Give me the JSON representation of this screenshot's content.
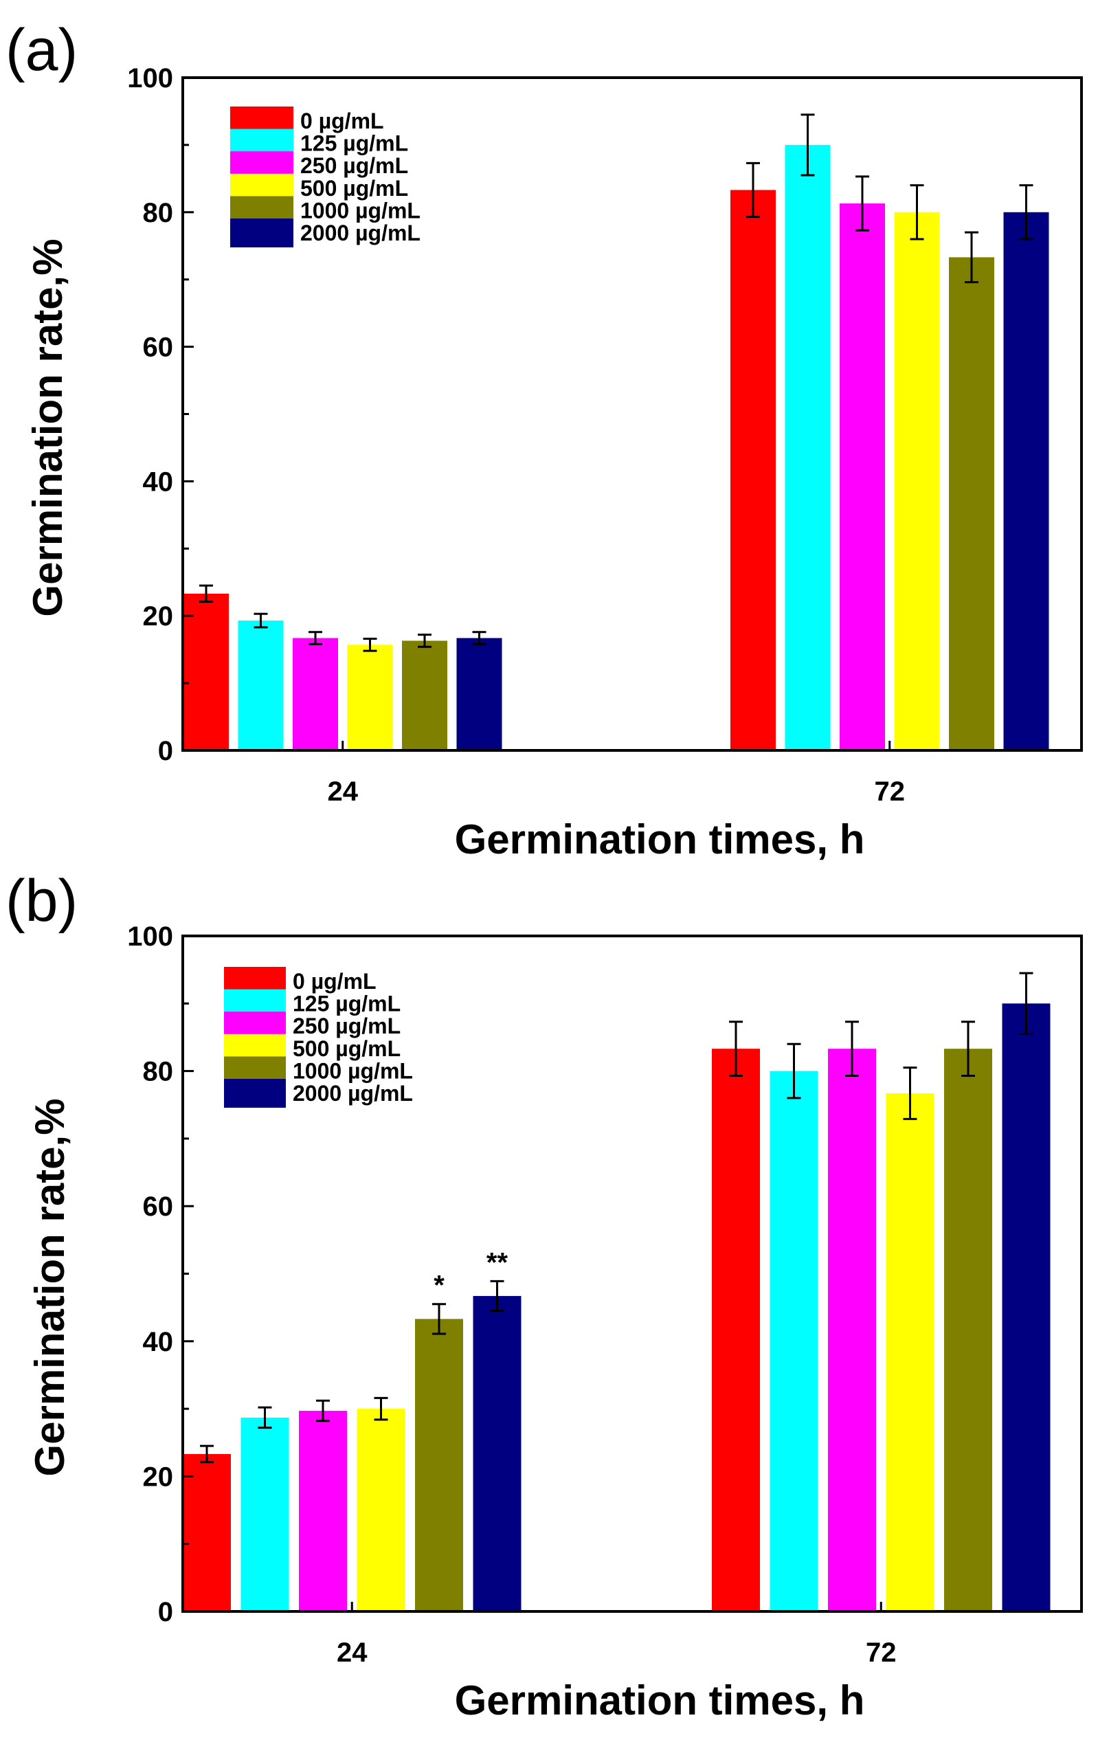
{
  "panels": [
    {
      "label": "(a)"
    },
    {
      "label": "(b)"
    }
  ],
  "colors": [
    "#ff0000",
    "#00ffff",
    "#ff00ff",
    "#ffff00",
    "#808000",
    "#000080"
  ],
  "chart_data": [
    {
      "type": "bar",
      "panel": "(a)",
      "xlabel": "Germination times, h",
      "ylabel": "Germination rate,%",
      "ylim": [
        0,
        100
      ],
      "yticks": [
        0,
        20,
        40,
        60,
        80,
        100
      ],
      "categories": [
        "24",
        "72"
      ],
      "legend_position": "top-left",
      "series": [
        {
          "name": "0   µg/mL",
          "values": [
            23.3,
            83.3
          ],
          "errors": [
            1.2,
            4.0
          ]
        },
        {
          "name": "125 µg/mL",
          "values": [
            19.3,
            90.0
          ],
          "errors": [
            1.0,
            4.5
          ]
        },
        {
          "name": "250 µg/mL",
          "values": [
            16.7,
            81.3
          ],
          "errors": [
            0.9,
            4.0
          ]
        },
        {
          "name": "500 µg/mL",
          "values": [
            15.7,
            80.0
          ],
          "errors": [
            0.9,
            4.0
          ]
        },
        {
          "name": "1000 µg/mL",
          "values": [
            16.3,
            73.3
          ],
          "errors": [
            0.9,
            3.7
          ]
        },
        {
          "name": "2000 µg/mL",
          "values": [
            16.7,
            80.0
          ],
          "errors": [
            0.9,
            4.0
          ]
        }
      ],
      "annotations": []
    },
    {
      "type": "bar",
      "panel": "(b)",
      "xlabel": "Germination times, h",
      "ylabel": "Germination rate,%",
      "ylim": [
        0,
        100
      ],
      "yticks": [
        0,
        20,
        40,
        60,
        80,
        100
      ],
      "categories": [
        "24",
        "72"
      ],
      "legend_position": "top-left",
      "series": [
        {
          "name": "0   µg/mL",
          "values": [
            23.3,
            83.3
          ],
          "errors": [
            1.2,
            4.0
          ]
        },
        {
          "name": "125 µg/mL",
          "values": [
            28.7,
            80.0
          ],
          "errors": [
            1.5,
            4.0
          ]
        },
        {
          "name": "250 µg/mL",
          "values": [
            29.7,
            83.3
          ],
          "errors": [
            1.5,
            4.0
          ]
        },
        {
          "name": "500 µg/mL",
          "values": [
            30.0,
            76.7
          ],
          "errors": [
            1.6,
            3.8
          ]
        },
        {
          "name": "1000 µg/mL",
          "values": [
            43.3,
            83.3
          ],
          "errors": [
            2.2,
            4.0
          ]
        },
        {
          "name": "2000 µg/mL",
          "values": [
            46.7,
            90.0
          ],
          "errors": [
            2.2,
            4.5
          ]
        }
      ],
      "annotations": [
        {
          "series": 4,
          "category": 0,
          "text": "*"
        },
        {
          "series": 5,
          "category": 0,
          "text": "**"
        }
      ]
    }
  ]
}
